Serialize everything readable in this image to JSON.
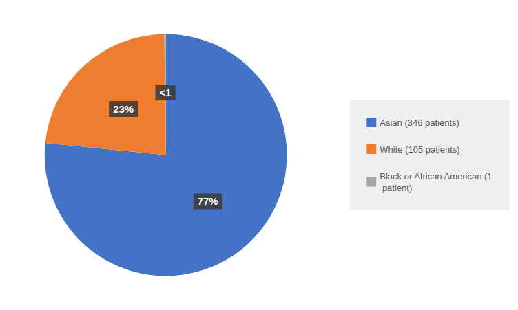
{
  "chart_data": {
    "type": "pie",
    "categories": [
      "Asian (346 patients)",
      "White (105 patients)",
      "Black or African American (1\n patient)"
    ],
    "values": [
      76.5,
      23.2,
      0.2
    ],
    "value_labels": [
      "77%",
      "23%",
      "<1"
    ],
    "colors": [
      "#4472C4",
      "#ED7D31",
      "#A5A5A5"
    ],
    "data_labels": true,
    "legend": "right"
  }
}
